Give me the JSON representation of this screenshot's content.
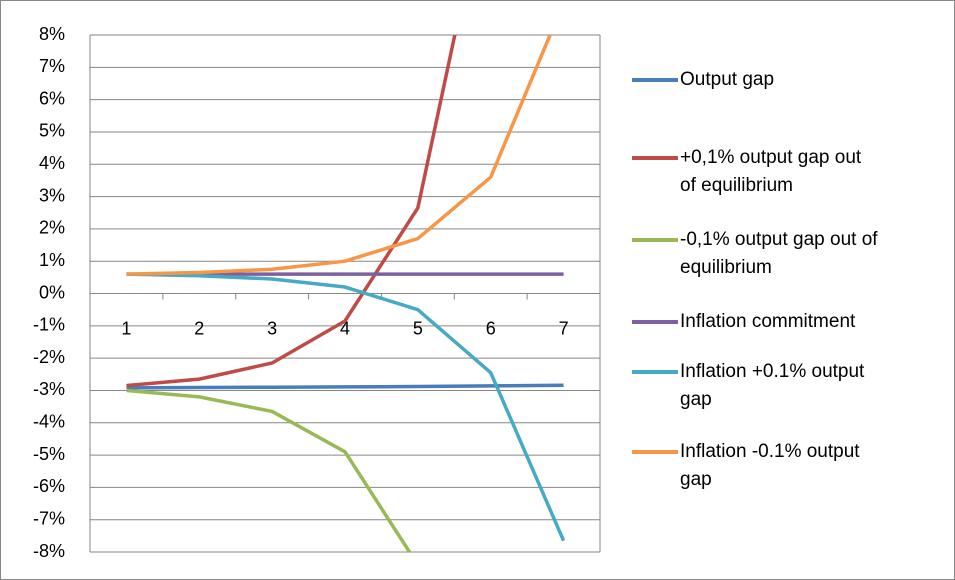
{
  "chart_data": {
    "type": "line",
    "categories": [
      1,
      2,
      3,
      4,
      5,
      6,
      7
    ],
    "series": [
      {
        "name": "Output gap",
        "color": "#4a7ebb",
        "values": [
          -2.92,
          -2.91,
          -2.9,
          -2.89,
          -2.88,
          -2.86,
          -2.84
        ]
      },
      {
        "name": "+0,1% output gap out of equilibrium",
        "color": "#be4b48",
        "values": [
          -2.85,
          -2.65,
          -2.15,
          -0.85,
          2.65,
          13.2,
          null
        ]
      },
      {
        "name": "-0,1% output gap out of equilibrium",
        "color": "#98b954",
        "values": [
          -3.0,
          -3.2,
          -3.65,
          -4.9,
          -8.4,
          null,
          null
        ]
      },
      {
        "name": "Inflation commitment",
        "color": "#7d60a0",
        "values": [
          0.6,
          0.6,
          0.6,
          0.6,
          0.6,
          0.6,
          0.6
        ]
      },
      {
        "name": "Inflation +0.1% output gap",
        "color": "#46aac5",
        "values": [
          0.6,
          0.55,
          0.45,
          0.2,
          -0.5,
          -2.45,
          -7.65
        ]
      },
      {
        "name": "Inflation -0.1% output gap",
        "color": "#f79646",
        "values": [
          0.6,
          0.65,
          0.75,
          1.0,
          1.7,
          3.6,
          9.0
        ]
      }
    ],
    "ylim": [
      -8,
      8
    ],
    "yticks": [
      {
        "value": -8,
        "label": "-8%"
      },
      {
        "value": -7,
        "label": "-7%"
      },
      {
        "value": -6,
        "label": "-6%"
      },
      {
        "value": -5,
        "label": "-5%"
      },
      {
        "value": -4,
        "label": "-4%"
      },
      {
        "value": -3,
        "label": "-3%"
      },
      {
        "value": -2,
        "label": "-2%"
      },
      {
        "value": -1,
        "label": "-1%"
      },
      {
        "value": 0,
        "label": "0%"
      },
      {
        "value": 1,
        "label": "1%"
      },
      {
        "value": 2,
        "label": "2%"
      },
      {
        "value": 3,
        "label": "3%"
      },
      {
        "value": 4,
        "label": "4%"
      },
      {
        "value": 5,
        "label": "5%"
      },
      {
        "value": 6,
        "label": "6%"
      },
      {
        "value": 7,
        "label": "7%"
      },
      {
        "value": 8,
        "label": "8%"
      }
    ],
    "grid": true,
    "legend": "right"
  }
}
